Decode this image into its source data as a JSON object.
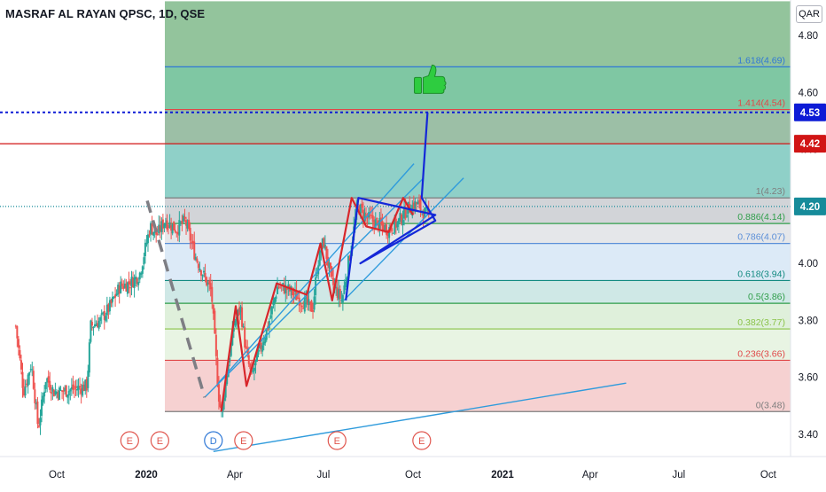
{
  "header": {
    "title": "MASRAF AL RAYAN QPSC, 1D, QSE",
    "currency": "QAR"
  },
  "chart_data": {
    "type": "candlestick",
    "ylim": [
      3.34,
      4.92
    ],
    "y_ticks": [
      "4.80",
      "4.60",
      "4.40",
      "4.00",
      "3.80",
      "3.60",
      "3.40"
    ],
    "x_ticks": [
      "Oct",
      "2020",
      "Apr",
      "Jul",
      "Oct",
      "2021",
      "Apr",
      "Jul",
      "Oct"
    ],
    "x_range": [
      "2019-08-20",
      "2021-11-15"
    ],
    "price_badges": [
      {
        "label": "4.53",
        "value": 4.53,
        "color": "#0d1bd6"
      },
      {
        "label": "4.42",
        "value": 4.42,
        "color": "#d11515"
      },
      {
        "label": "4.20",
        "value": 4.2,
        "color": "#168b9a"
      }
    ],
    "fib_levels": [
      {
        "label": "1.618(4.69)",
        "value": 4.69,
        "color": "#2f78d6"
      },
      {
        "label": "1.414(4.54)",
        "value": 4.54,
        "color": "#e04848"
      },
      {
        "label": "1(4.23)",
        "value": 4.23,
        "color": "#7e7e7e"
      },
      {
        "label": "0.886(4.14)",
        "value": 4.14,
        "color": "#2f9e4a"
      },
      {
        "label": "0.786(4.07)",
        "value": 4.07,
        "color": "#5b8fd8"
      },
      {
        "label": "0.618(3.94)",
        "value": 3.94,
        "color": "#128a80"
      },
      {
        "label": "0.5(3.86)",
        "value": 3.86,
        "color": "#2f9e4a"
      },
      {
        "label": "0.382(3.77)",
        "value": 3.77,
        "color": "#8bc34a"
      },
      {
        "label": "0.236(3.66)",
        "value": 3.66,
        "color": "#e04848"
      },
      {
        "label": "0(3.48)",
        "value": 3.48,
        "color": "#7e7e7e"
      }
    ],
    "event_markers": [
      {
        "label": "E",
        "date": "2019-12-15",
        "color": "#e0564e"
      },
      {
        "label": "E",
        "date": "2020-01-15",
        "color": "#e0564e"
      },
      {
        "label": "D",
        "date": "2020-03-10",
        "color": "#2f78d6"
      },
      {
        "label": "E",
        "date": "2020-04-10",
        "color": "#e0564e"
      },
      {
        "label": "E",
        "date": "2020-07-15",
        "color": "#e0564e"
      },
      {
        "label": "E",
        "date": "2020-10-10",
        "color": "#e0564e"
      }
    ],
    "price_path": [
      [
        "2019-08-20",
        3.78
      ],
      [
        "2019-08-28",
        3.55
      ],
      [
        "2019-09-05",
        3.65
      ],
      [
        "2019-09-12",
        3.42
      ],
      [
        "2019-09-20",
        3.6
      ],
      [
        "2019-09-28",
        3.55
      ],
      [
        "2019-10-05",
        3.55
      ],
      [
        "2019-10-20",
        3.56
      ],
      [
        "2019-11-01",
        3.57
      ],
      [
        "2019-11-05",
        3.78
      ],
      [
        "2019-11-15",
        3.8
      ],
      [
        "2019-11-25",
        3.85
      ],
      [
        "2019-12-05",
        3.92
      ],
      [
        "2019-12-15",
        3.93
      ],
      [
        "2019-12-25",
        3.96
      ],
      [
        "2020-01-05",
        4.13
      ],
      [
        "2020-01-12",
        4.1
      ],
      [
        "2020-01-20",
        4.15
      ],
      [
        "2020-02-01",
        4.12
      ],
      [
        "2020-02-10",
        4.15
      ],
      [
        "2020-02-20",
        4.03
      ],
      [
        "2020-03-01",
        3.95
      ],
      [
        "2020-03-08",
        3.9
      ],
      [
        "2020-03-12",
        3.7
      ],
      [
        "2020-03-15",
        3.55
      ],
      [
        "2020-03-18",
        3.47
      ],
      [
        "2020-03-25",
        3.64
      ],
      [
        "2020-04-01",
        3.8
      ],
      [
        "2020-04-07",
        3.84
      ],
      [
        "2020-04-12",
        3.7
      ],
      [
        "2020-04-18",
        3.6
      ],
      [
        "2020-04-25",
        3.68
      ],
      [
        "2020-05-05",
        3.78
      ],
      [
        "2020-05-15",
        3.92
      ],
      [
        "2020-05-25",
        3.91
      ],
      [
        "2020-06-05",
        3.88
      ],
      [
        "2020-06-12",
        3.86
      ],
      [
        "2020-06-20",
        3.84
      ],
      [
        "2020-06-25",
        4.0
      ],
      [
        "2020-07-01",
        4.08
      ],
      [
        "2020-07-10",
        3.93
      ],
      [
        "2020-07-20",
        3.87
      ],
      [
        "2020-07-28",
        4.03
      ],
      [
        "2020-08-05",
        4.2
      ],
      [
        "2020-08-15",
        4.16
      ],
      [
        "2020-08-25",
        4.14
      ],
      [
        "2020-09-05",
        4.12
      ],
      [
        "2020-09-15",
        4.14
      ],
      [
        "2020-09-25",
        4.19
      ],
      [
        "2020-10-05",
        4.21
      ],
      [
        "2020-10-12",
        4.18
      ],
      [
        "2020-10-18",
        4.16
      ]
    ],
    "zigzag_red": [
      [
        "2020-03-18",
        3.48
      ],
      [
        "2020-04-02",
        3.85
      ],
      [
        "2020-04-13",
        3.57
      ],
      [
        "2020-05-14",
        3.93
      ],
      [
        "2020-06-14",
        3.89
      ],
      [
        "2020-06-28",
        4.07
      ],
      [
        "2020-07-10",
        3.87
      ],
      [
        "2020-07-30",
        4.23
      ],
      [
        "2020-08-14",
        4.13
      ],
      [
        "2020-09-06",
        4.11
      ],
      [
        "2020-09-21",
        4.23
      ],
      [
        "2020-10-01",
        4.17
      ]
    ],
    "zigzag_blue": [
      [
        "2020-07-24",
        3.87
      ],
      [
        "2020-08-06",
        4.23
      ],
      [
        "2020-10-24",
        4.17
      ],
      [
        "2020-08-08",
        4.0
      ],
      [
        "2020-10-24",
        4.15
      ],
      [
        "2020-10-10",
        4.23
      ],
      [
        "2020-10-16",
        4.53
      ]
    ],
    "channel_lines": [
      [
        [
          "2020-03-01",
          3.53
        ],
        [
          "2020-10-12",
          4.3
        ]
      ],
      [
        [
          "2020-03-15",
          3.58
        ],
        [
          "2020-10-02",
          4.35
        ]
      ],
      [
        [
          "2020-07-22",
          3.87
        ],
        [
          "2020-11-22",
          4.3
        ]
      ],
      [
        [
          "2020-03-10",
          3.34
        ],
        [
          "2021-05-08",
          3.58
        ]
      ]
    ],
    "dashed_line": [
      [
        "2020-01-02",
        4.22
      ],
      [
        "2020-03-01",
        3.53
      ]
    ],
    "thumbs_up": {
      "date": "2020-10-17",
      "value": 4.64
    }
  }
}
